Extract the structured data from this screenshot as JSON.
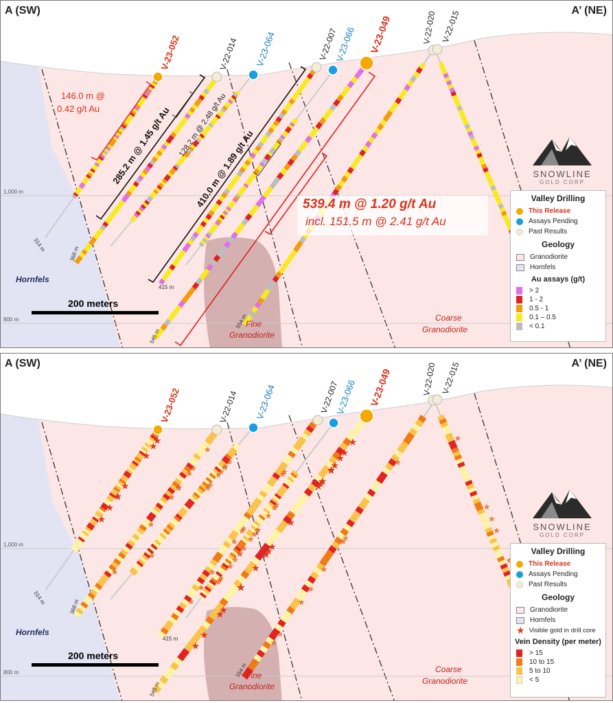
{
  "section_labels": {
    "left": "A (SW)",
    "right": "A’ (NE)"
  },
  "drillholes": {
    "v23052": "V-23-052",
    "v22014": "V-22-014",
    "v23064": "V-23-064",
    "v22007": "V-22-007",
    "v23066": "V-23-066",
    "v23049": "V-23-049",
    "v22020": "V-22-020",
    "v22015": "V-22-015"
  },
  "depths": {
    "d314": "314 m",
    "d368": "368 m",
    "d415": "415 m",
    "d545": "545 m",
    "d554": "554 m"
  },
  "elevations": {
    "e1000": "1,000 m",
    "e800": "800 m"
  },
  "intervals": {
    "i146": "146.0 m @",
    "i146b": "0.42 g/t Au",
    "i285": "285.2 m @ 1.45 g/t Au",
    "i128": "128.2 m @ 2.48 g/t Au",
    "i410": "410.0 m @ 1.89 g/t Au",
    "i539": "539.4 m @ 1.20 g/t Au",
    "i151": "incl. 151.5 m @ 2.41 g/t Au"
  },
  "geology_text": {
    "hornfels": "Hornfels",
    "fine1": "Fine",
    "fine2": "Granodiorite",
    "coarse1": "Coarse",
    "coarse2": "Granodiorite"
  },
  "scale_bar": "200 meters",
  "logo": {
    "name": "SNOWLINE",
    "sub": "GOLD CORP"
  },
  "legend_top": {
    "title": "Valley Drilling",
    "this_release": "This Release",
    "assays_pending": "Assays Pending",
    "past_results": "Past Results",
    "geology_title": "Geology",
    "granodiorite": "Granodiorite",
    "hornfels": "Hornfels",
    "assay_title": "Au assays (g/t)",
    "a1": "> 2",
    "a2": "1 - 2",
    "a3": "0.5 - 1",
    "a4": "0.1 – 0.5",
    "a5": "< 0.1"
  },
  "legend_bottom": {
    "title": "Valley Drilling",
    "this_release": "This Release",
    "assays_pending": "Assays Pending",
    "past_results": "Past Results",
    "geology_title": "Geology",
    "granodiorite": "Granodiorite",
    "hornfels": "Hornfels",
    "visible_gold": "Visible gold in drill core",
    "vein_title": "Vein Density (per meter)",
    "v1": "> 15",
    "v2": "10 to 15",
    "v3": "5 to 10",
    "v4": "< 5"
  },
  "colors": {
    "this_release": "#f5a800",
    "assays_pending": "#1a9ee0",
    "past_results": "#f3ecd6",
    "granodiorite": "#fde6e6",
    "hornfels": "#e2e4f4",
    "fine_granodiorite": "#c9a3a3",
    "au_gt2": "#e070e8",
    "au_1_2": "#e02222",
    "au_05_1": "#f59a0a",
    "au_01_05": "#f8ea1e",
    "au_lt01": "#bdbdbd",
    "vein_gt15": "#e32222",
    "vein_10_15": "#f07a14",
    "vein_5_10": "#fbc24a",
    "vein_lt5": "#fff3a8"
  }
}
